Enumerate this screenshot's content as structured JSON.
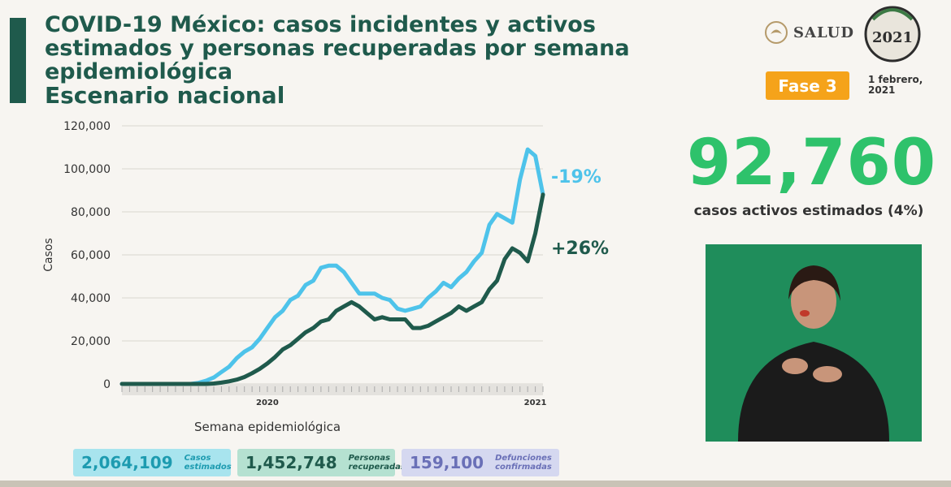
{
  "header": {
    "title": "COVID-19 México: casos incidentes y activos estimados y personas recuperadas por semana epidemiológica",
    "subtitle": "Escenario nacional"
  },
  "logos": {
    "salud": "SALUD",
    "year": "2021"
  },
  "phase_badge": "Fase 3",
  "date": "1 febrero, 2021",
  "highlight": {
    "value": "92,760",
    "caption": "casos activos estimados (4%)"
  },
  "summary": [
    {
      "value": "2,064,109",
      "label": "Casos estimados"
    },
    {
      "value": "1,452,748",
      "label": "Personas recuperadas"
    },
    {
      "value": "159,100",
      "label": "Defunciones confirmadas"
    }
  ],
  "colors": {
    "brand_green": "#1f5a4c",
    "accent_green": "#2ec26b",
    "cyan": "#4ec3ea",
    "phase_orange": "#f5a31a"
  },
  "chart_data": {
    "type": "line",
    "xlabel": "Semana epidemiológica",
    "ylabel": "Casos",
    "ylim": [
      0,
      120000
    ],
    "yticks": [
      "0",
      "20,000",
      "40,000",
      "60,000",
      "80,000",
      "100,000",
      "120,000"
    ],
    "year_labels": [
      "2020",
      "2021"
    ],
    "x": [
      1,
      2,
      3,
      4,
      5,
      6,
      7,
      8,
      9,
      10,
      11,
      12,
      13,
      14,
      15,
      16,
      17,
      18,
      19,
      20,
      21,
      22,
      23,
      24,
      25,
      26,
      27,
      28,
      29,
      30,
      31,
      32,
      33,
      34,
      35,
      36,
      37,
      38,
      39,
      40,
      41,
      42,
      43,
      44,
      45,
      46,
      47,
      48,
      49,
      50,
      51,
      52,
      53,
      54,
      55,
      56
    ],
    "series": [
      {
        "color": "#4ec3ea",
        "annotation": "-19%",
        "values": [
          0,
          0,
          0,
          0,
          0,
          0,
          0,
          0,
          0,
          0,
          500,
          1500,
          3000,
          5500,
          8000,
          12000,
          15000,
          17000,
          21000,
          26000,
          31000,
          34000,
          39000,
          41000,
          46000,
          48000,
          54000,
          55000,
          55000,
          52000,
          47000,
          42000,
          42000,
          42000,
          40000,
          39000,
          35000,
          34000,
          35000,
          36000,
          40000,
          43000,
          47000,
          45000,
          49000,
          52000,
          57000,
          61000,
          74000,
          79000,
          77000,
          75000,
          95000,
          109000,
          106000,
          88000
        ]
      },
      {
        "color": "#1f5a4c",
        "annotation": "+26%",
        "values": [
          0,
          0,
          0,
          0,
          0,
          0,
          0,
          0,
          0,
          0,
          0,
          0,
          200,
          600,
          1200,
          2000,
          3200,
          5000,
          7000,
          9500,
          12500,
          16000,
          18000,
          21000,
          24000,
          26000,
          29000,
          30000,
          34000,
          36000,
          38000,
          36000,
          33000,
          30000,
          31000,
          30000,
          30000,
          30000,
          26000,
          26000,
          27000,
          29000,
          31000,
          33000,
          36000,
          34000,
          36000,
          38000,
          44000,
          48000,
          58000,
          63000,
          61000,
          57000,
          70000,
          88000
        ]
      }
    ]
  }
}
